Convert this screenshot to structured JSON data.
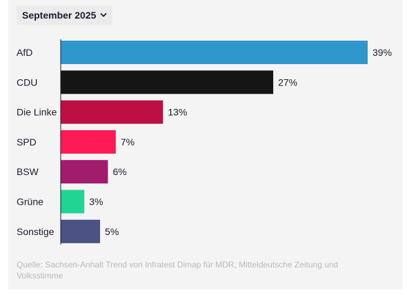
{
  "period_selector": {
    "label": "September 2025",
    "icon": "chevron-down-icon"
  },
  "chart_data": {
    "type": "bar",
    "orientation": "horizontal",
    "categories": [
      "AfD",
      "CDU",
      "Die Linke",
      "SPD",
      "BSW",
      "Grüne",
      "Sonstige"
    ],
    "values": [
      39,
      27,
      13,
      7,
      6,
      3,
      5
    ],
    "value_labels": [
      "39%",
      "27%",
      "13%",
      "7%",
      "6%",
      "3%",
      "5%"
    ],
    "colors": [
      "#3097cd",
      "#151515",
      "#be0f44",
      "#fe1a54",
      "#a11c6d",
      "#22d494",
      "#4b5284"
    ],
    "unit": "%",
    "xlim": [
      0,
      39
    ],
    "grid": false,
    "legend": "none"
  },
  "source": "Quelle: Sachsen-Anhalt Trend von Infratest Dimap für MDR, Mitteldeutsche Zeitung und Volksstimme"
}
